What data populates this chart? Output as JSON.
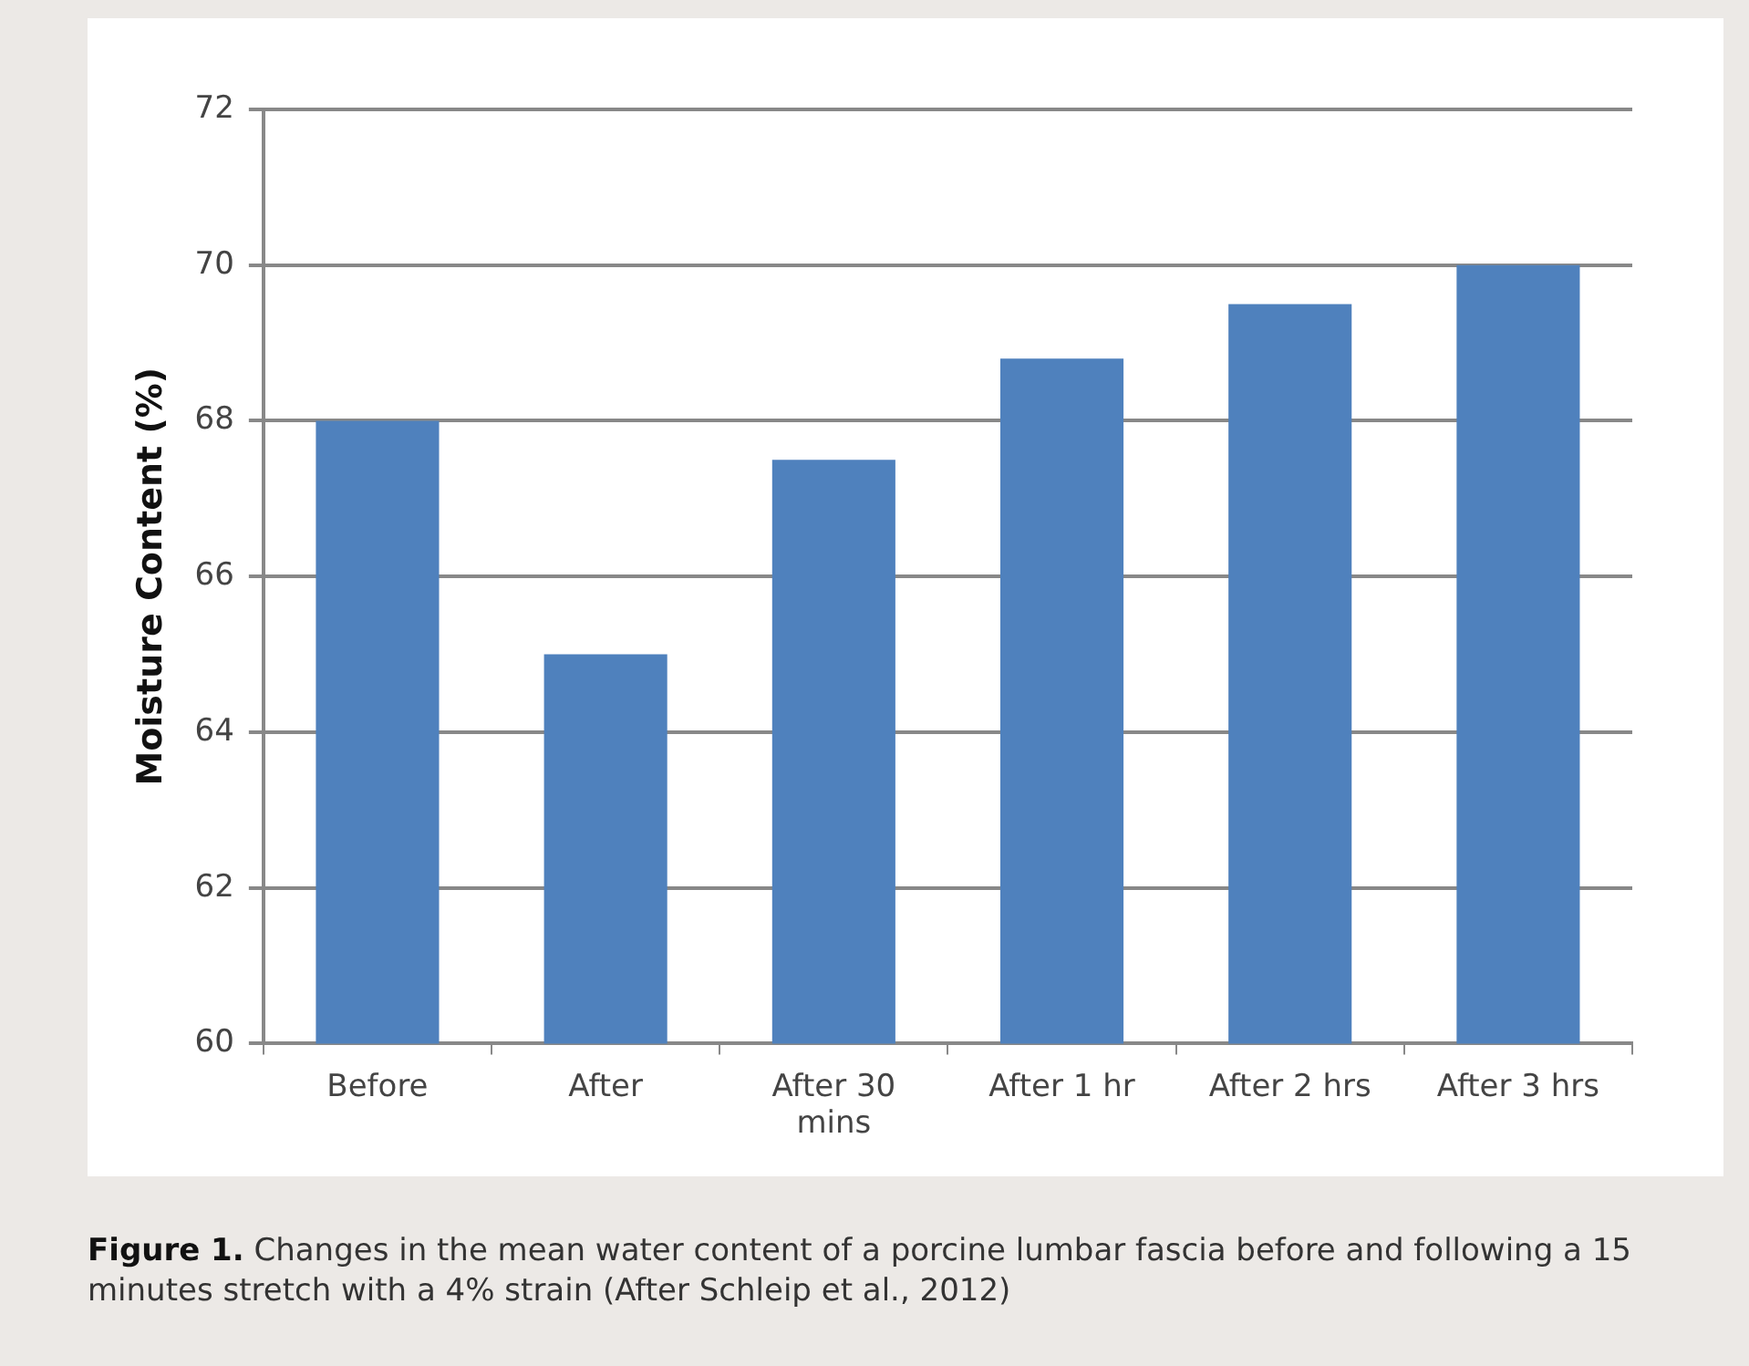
{
  "chart_data": {
    "type": "bar",
    "ylabel": "Moisture Content (%)",
    "categories": [
      "Before",
      "After",
      "After 30 mins",
      "After 1 hr",
      "After 2 hrs",
      "After 3 hrs"
    ],
    "values": [
      68.0,
      65.0,
      67.5,
      68.8,
      69.5,
      70.0
    ],
    "color": "#4f81bd",
    "ylim": [
      60,
      72
    ],
    "yticks": [
      60,
      62,
      64,
      66,
      68,
      70,
      72
    ],
    "grid": "y",
    "annotations": [
      "Figure 1.",
      "Changes in the mean water content of a porcine lumbar fascia before and following a 15 minutes stretch with a 4% strain (After Schleip et al., 2012)"
    ]
  }
}
